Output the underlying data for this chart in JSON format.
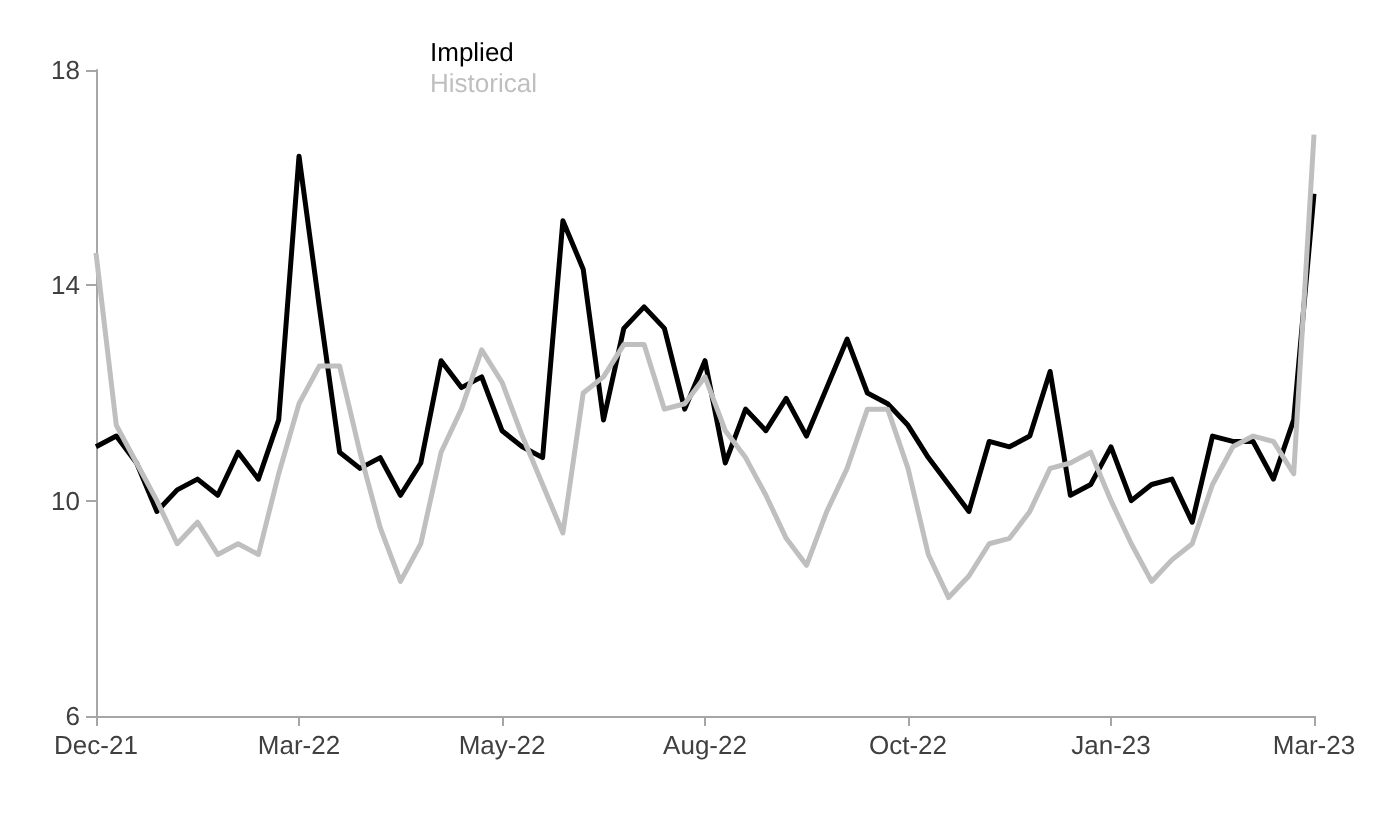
{
  "chart_data": {
    "type": "line",
    "categories": [
      "Dec-21",
      null,
      null,
      null,
      null,
      null,
      null,
      null,
      null,
      null,
      "Mar-22",
      null,
      null,
      null,
      null,
      null,
      null,
      null,
      null,
      null,
      "May-22",
      null,
      null,
      null,
      null,
      null,
      null,
      null,
      null,
      null,
      "Aug-22",
      null,
      null,
      null,
      null,
      null,
      null,
      null,
      null,
      null,
      "Oct-22",
      null,
      null,
      null,
      null,
      null,
      null,
      null,
      null,
      null,
      "Jan-23",
      null,
      null,
      null,
      null,
      null,
      null,
      null,
      null,
      null,
      "Mar-23"
    ],
    "series": [
      {
        "name": "Implied",
        "color": "#000000",
        "values": [
          11.0,
          11.2,
          10.7,
          9.8,
          10.2,
          10.4,
          10.1,
          10.9,
          10.4,
          11.5,
          16.4,
          13.6,
          10.9,
          10.6,
          10.8,
          10.1,
          10.7,
          12.6,
          12.1,
          12.3,
          11.3,
          11.0,
          10.8,
          15.2,
          14.3,
          11.5,
          13.2,
          13.6,
          13.2,
          11.7,
          12.6,
          10.7,
          11.7,
          11.3,
          11.9,
          11.2,
          12.1,
          13.0,
          12.0,
          11.8,
          11.4,
          10.8,
          10.3,
          9.8,
          11.1,
          11.0,
          11.2,
          12.4,
          10.1,
          10.3,
          11.0,
          10.0,
          10.3,
          10.4,
          9.6,
          11.2,
          11.1,
          11.1,
          10.4,
          11.5,
          15.7
        ]
      },
      {
        "name": "Historical",
        "color": "#bfbfbf",
        "values": [
          14.6,
          11.4,
          10.7,
          10.0,
          9.2,
          9.6,
          9.0,
          9.2,
          9.0,
          10.5,
          11.8,
          12.5,
          12.5,
          10.9,
          9.5,
          8.5,
          9.2,
          10.9,
          11.7,
          12.8,
          12.2,
          11.2,
          10.3,
          9.4,
          12.0,
          12.3,
          12.9,
          12.9,
          11.7,
          11.8,
          12.3,
          11.3,
          10.8,
          10.1,
          9.3,
          8.8,
          9.8,
          10.6,
          11.7,
          11.7,
          10.6,
          9.0,
          8.2,
          8.6,
          9.2,
          9.3,
          9.8,
          10.6,
          10.7,
          10.9,
          10.0,
          9.2,
          8.5,
          8.9,
          9.2,
          10.3,
          11.0,
          11.2,
          11.1,
          10.5,
          16.8
        ]
      }
    ],
    "ylim": [
      6,
      18
    ],
    "yticks": [
      6,
      10,
      14,
      18
    ],
    "grid": false,
    "legend": "top left",
    "marker": "none",
    "line_style": "solid"
  }
}
